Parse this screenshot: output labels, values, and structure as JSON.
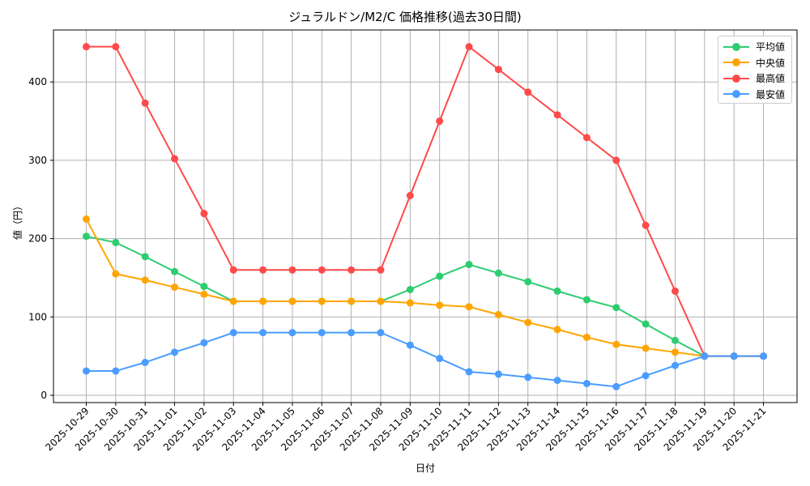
{
  "chart_data": {
    "type": "line",
    "title": "ジュラルドン/M2/C 価格推移(過去30日間)",
    "xlabel": "日付",
    "ylabel": "値（円）",
    "ylim": [
      -10,
      465
    ],
    "yticks": [
      0,
      100,
      200,
      300,
      400
    ],
    "grid": true,
    "legend_position": "upper right",
    "categories": [
      "2025-10-29",
      "2025-10-30",
      "2025-10-31",
      "2025-11-01",
      "2025-11-02",
      "2025-11-03",
      "2025-11-04",
      "2025-11-05",
      "2025-11-06",
      "2025-11-07",
      "2025-11-08",
      "2025-11-09",
      "2025-11-10",
      "2025-11-11",
      "2025-11-12",
      "2025-11-13",
      "2025-11-14",
      "2025-11-15",
      "2025-11-16",
      "2025-11-17",
      "2025-11-18",
      "2025-11-19",
      "2025-11-20",
      "2025-11-21"
    ],
    "series": [
      {
        "name": "平均値",
        "color": "#2ecc71",
        "values": [
          203,
          195,
          177,
          158,
          139,
          120,
          120,
          120,
          120,
          120,
          120,
          135,
          152,
          167,
          156,
          145,
          133,
          122,
          112,
          91,
          70,
          50,
          50,
          50
        ]
      },
      {
        "name": "中央値",
        "color": "#ffa500",
        "values": [
          225,
          155,
          147,
          138,
          129,
          120,
          120,
          120,
          120,
          120,
          120,
          118,
          115,
          113,
          103,
          93,
          84,
          74,
          65,
          60,
          55,
          50,
          50,
          50
        ]
      },
      {
        "name": "最高値",
        "color": "#ff4a4a",
        "values": [
          445,
          445,
          373,
          302,
          232,
          160,
          160,
          160,
          160,
          160,
          160,
          255,
          350,
          445,
          416,
          387,
          358,
          329,
          300,
          217,
          133,
          50,
          50,
          50
        ]
      },
      {
        "name": "最安値",
        "color": "#4a9dff",
        "values": [
          31,
          31,
          42,
          55,
          67,
          80,
          80,
          80,
          80,
          80,
          80,
          64,
          47,
          30,
          27,
          23,
          19,
          15,
          11,
          25,
          38,
          50,
          50,
          50
        ]
      }
    ]
  }
}
